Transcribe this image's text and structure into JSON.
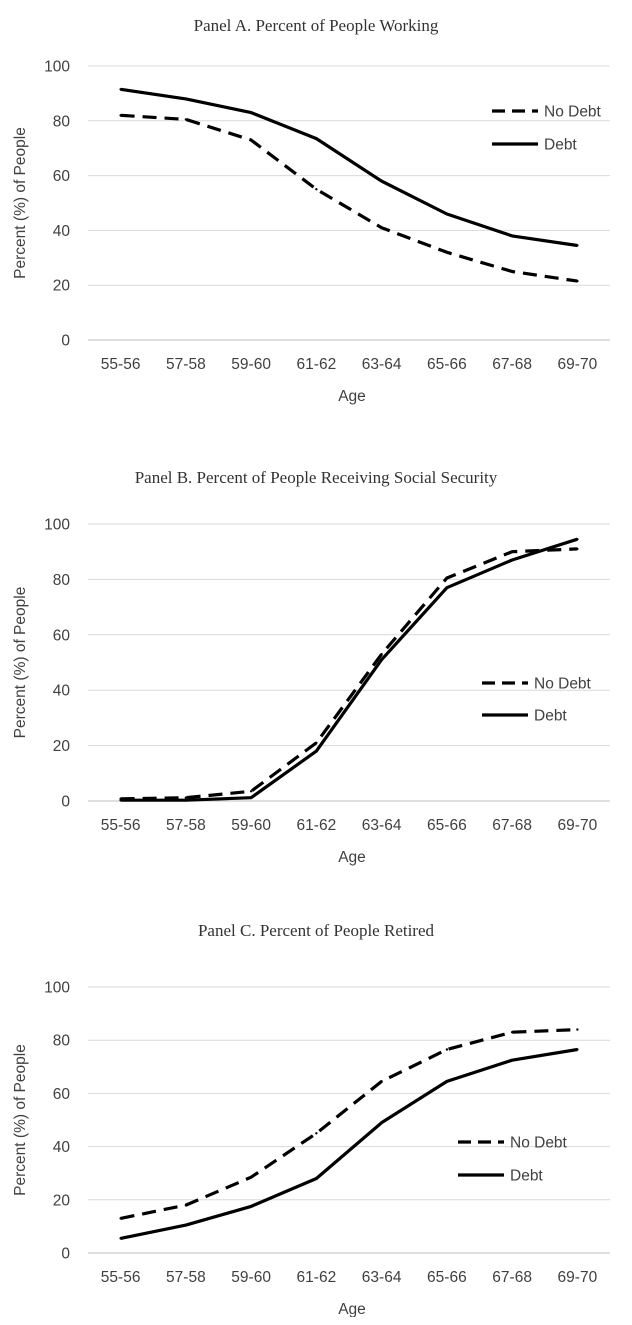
{
  "chart_data": [
    {
      "type": "line",
      "title": "Panel A. Percent of People Working",
      "xlabel": "Age",
      "ylabel": "Percent (%) of People",
      "categories": [
        "55-56",
        "57-58",
        "59-60",
        "61-62",
        "63-64",
        "65-66",
        "67-68",
        "69-70"
      ],
      "ylim": [
        0,
        100
      ],
      "yticks": [
        0,
        20,
        40,
        60,
        80,
        100
      ],
      "grid": true,
      "legend_position": "top-right",
      "series": [
        {
          "name": "No Debt",
          "style": "dashed",
          "color": "#000000",
          "values": [
            82,
            80.5,
            73,
            55,
            41,
            32,
            25,
            21.5
          ]
        },
        {
          "name": "Debt",
          "style": "solid",
          "color": "#000000",
          "values": [
            91.5,
            88,
            83,
            73.5,
            58,
            46,
            38,
            34.5
          ]
        }
      ]
    },
    {
      "type": "line",
      "title": "Panel B. Percent of People Receiving  Social Security",
      "xlabel": "Age",
      "ylabel": "Percent (%) of People",
      "categories": [
        "55-56",
        "57-58",
        "59-60",
        "61-62",
        "63-64",
        "65-66",
        "67-68",
        "69-70"
      ],
      "ylim": [
        0,
        100
      ],
      "yticks": [
        0,
        20,
        40,
        60,
        80,
        100
      ],
      "grid": true,
      "legend_position": "center-right",
      "series": [
        {
          "name": "No Debt",
          "style": "dashed",
          "color": "#000000",
          "values": [
            0.8,
            1.2,
            3.5,
            21,
            53,
            80.5,
            90,
            91
          ]
        },
        {
          "name": "Debt",
          "style": "solid",
          "color": "#000000",
          "values": [
            0.3,
            0.3,
            1.2,
            18,
            51,
            77,
            87,
            94.5
          ]
        }
      ]
    },
    {
      "type": "line",
      "title": "Panel C. Percent of People Retired",
      "xlabel": "Age",
      "ylabel": "Percent (%) of People",
      "categories": [
        "55-56",
        "57-58",
        "59-60",
        "61-62",
        "63-64",
        "65-66",
        "67-68",
        "69-70"
      ],
      "ylim": [
        0,
        100
      ],
      "yticks": [
        0,
        20,
        40,
        60,
        80,
        100
      ],
      "grid": true,
      "legend_position": "center-right",
      "series": [
        {
          "name": "No Debt",
          "style": "dashed",
          "color": "#000000",
          "values": [
            13,
            18,
            28.5,
            45,
            64.5,
            76.5,
            83,
            84
          ]
        },
        {
          "name": "Debt",
          "style": "solid",
          "color": "#000000",
          "values": [
            5.5,
            10.5,
            17.5,
            28,
            49,
            64.5,
            72.5,
            76.5
          ]
        }
      ]
    }
  ]
}
